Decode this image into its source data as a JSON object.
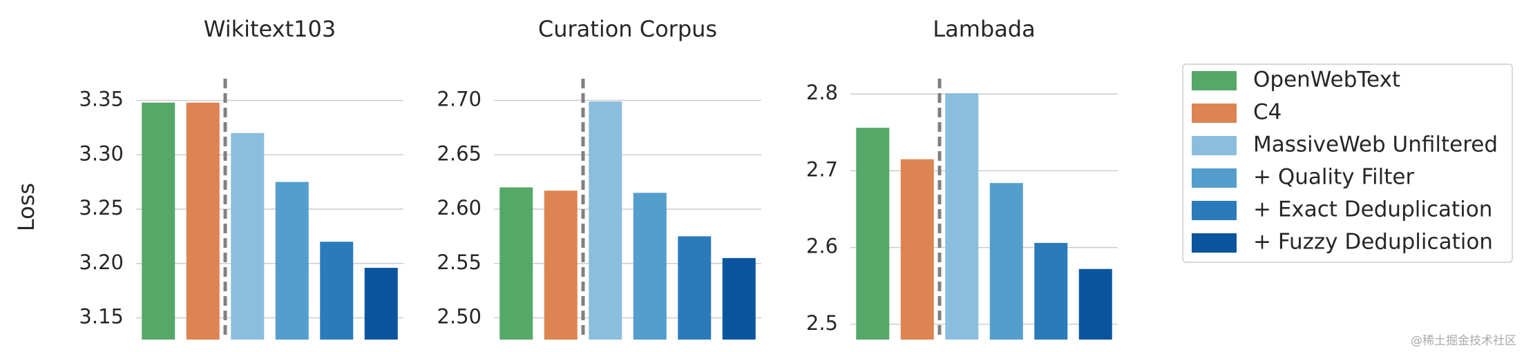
{
  "chart_data": [
    {
      "type": "bar",
      "title": "Wikitext103",
      "values": [
        3.348,
        3.348,
        3.32,
        3.275,
        3.22,
        3.196
      ],
      "ylim": [
        3.13,
        3.37
      ],
      "yticks": [
        3.15,
        {
          "value": 3.2,
          "label": "3.20"
        },
        3.25,
        {
          "value": 3.3,
          "label": "3.30"
        },
        3.35
      ],
      "grid": true
    },
    {
      "type": "bar",
      "title": "Curation Corpus",
      "values": [
        2.62,
        2.617,
        2.699,
        2.615,
        2.575,
        2.555
      ],
      "ylim": [
        2.48,
        2.72
      ],
      "yticks": [
        {
          "value": 2.5,
          "label": "2.50"
        },
        2.55,
        {
          "value": 2.6,
          "label": "2.60"
        },
        2.65,
        {
          "value": 2.7,
          "label": "2.70"
        }
      ],
      "grid": true
    },
    {
      "type": "bar",
      "title": "Lambada",
      "values": [
        2.756,
        2.715,
        2.801,
        2.684,
        2.606,
        2.572
      ],
      "ylim": [
        2.48,
        2.82
      ],
      "yticks": [
        2.5,
        2.6,
        2.7,
        2.8
      ],
      "grid": true
    }
  ],
  "ylabel": "Loss",
  "legend": {
    "position": "right",
    "entries": [
      {
        "name": "OpenWebText",
        "color": "#55a868"
      },
      {
        "name": "C4",
        "color": "#dd8452"
      },
      {
        "name": "MassiveWeb Unfiltered",
        "color": "#8bbede"
      },
      {
        "name": "+ Quality Filter",
        "color": "#539ecd"
      },
      {
        "name": "+ Exact Deduplication",
        "color": "#2b7bba"
      },
      {
        "name": "+ Fuzzy Deduplication",
        "color": "#0b559f"
      }
    ]
  },
  "watermark": "@稀土掘金技术社区"
}
